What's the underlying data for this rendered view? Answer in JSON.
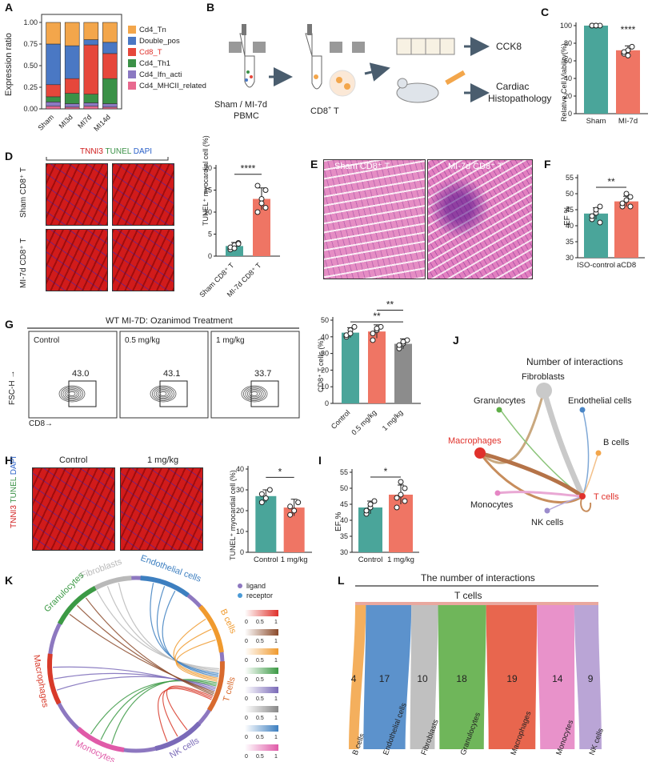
{
  "panels": {
    "A": "A",
    "B": "B",
    "C": "C",
    "D": "D",
    "E": "E",
    "F": "F",
    "G": "G",
    "H": "H",
    "I": "I",
    "J": "J",
    "K": "K",
    "L": "L"
  },
  "panelA": {
    "ylabel": "Expression ratio",
    "yticks": [
      "0.00",
      "0.25",
      "0.50",
      "0.75",
      "1.00"
    ],
    "legend": [
      {
        "label": "Cd4_Tn",
        "color": "#f3a64b"
      },
      {
        "label": "Double_pos",
        "color": "#4a78c4"
      },
      {
        "label": "Cd8_T",
        "color": "#e6473b",
        "highlight": true
      },
      {
        "label": "Cd4_Th1",
        "color": "#3b9147"
      },
      {
        "label": "Cd4_Ifn_acti",
        "color": "#8b79c2"
      },
      {
        "label": "Cd4_MHCII_related",
        "color": "#e86a8f"
      }
    ]
  },
  "panelB": {
    "source": "Sham / MI-7d",
    "source2": "PBMC",
    "cd8": "CD8",
    "cd8_sup": "+",
    "cd8_suffix": " T",
    "out1": "CCK8",
    "out2a": "Cardiac",
    "out2b": "Histopathology"
  },
  "panelC": {
    "ylabel": "Relative Cell Viability(%)",
    "yticks": [
      "0",
      "20",
      "40",
      "60",
      "80",
      "100"
    ],
    "groups": [
      "Sham",
      "MI-7d"
    ],
    "sig": "****"
  },
  "panelD": {
    "stain1": "TNNI3",
    "stain2": "TUNEL",
    "stain3": "DAPI",
    "row1": "Sham CD8⁺ T",
    "row2": "MI-7d CD8⁺ T",
    "ylabel": "TUNEL⁺ myocardial cell (%)",
    "yticks": [
      "0",
      "5",
      "10",
      "15",
      "20"
    ],
    "groups": [
      "Sham CD8⁺ T",
      "MI-7d CD8⁺ T"
    ],
    "sig": "****"
  },
  "panelE": {
    "title1": "Sham CD8⁺ T",
    "title2": "MI-7d CD8⁺ T"
  },
  "panelF": {
    "ylabel": "EF %",
    "yticks": [
      "30",
      "35",
      "40",
      "45",
      "50",
      "55"
    ],
    "groups": [
      "ISO-control",
      "aCD8"
    ],
    "sig": "**"
  },
  "panelG": {
    "header": "WT MI-7D: Ozanimod Treatment",
    "facs": [
      {
        "title": "Control",
        "value": "43.0"
      },
      {
        "title": "0.5 mg/kg",
        "value": "43.1"
      },
      {
        "title": "1 mg/kg",
        "value": "33.7"
      }
    ],
    "yaxis": "FSC-H →",
    "xaxis": "CD8→",
    "ylabel": "CD8⁺ T cells (%)",
    "yticks": [
      "0",
      "10",
      "20",
      "30",
      "40",
      "50"
    ],
    "groups": [
      "Control",
      "0.5 mg/kg",
      "1 mg/kg"
    ],
    "sig1": "**",
    "sig2": "**"
  },
  "panelH": {
    "title1": "Control",
    "title2": "1 mg/kg",
    "stain1": "TNNI3",
    "stain2": "TUNEL",
    "stain3": "DAPI",
    "ylabel": "TUNEL⁺ myocardial cell (%)",
    "yticks": [
      "0",
      "10",
      "20",
      "30",
      "40"
    ],
    "groups": [
      "Control",
      "1 mg/kg"
    ],
    "sig": "*"
  },
  "panelI": {
    "ylabel": "EF %",
    "yticks": [
      "30",
      "35",
      "40",
      "45",
      "50",
      "55"
    ],
    "groups": [
      "Control",
      "1 mg/kg"
    ],
    "sig": "*"
  },
  "panelJ": {
    "title": "Number of interactions",
    "nodes": [
      {
        "label": "Fibroblasts",
        "color": "#bbbbbb"
      },
      {
        "label": "Granulocytes",
        "color": "#5fae48"
      },
      {
        "label": "Endothelial cells",
        "color": "#4a86c6"
      },
      {
        "label": "Macrophages",
        "color": "#e0312b",
        "highlight": true
      },
      {
        "label": "B cells",
        "color": "#f3a64b"
      },
      {
        "label": "T cells",
        "color": "#e0312b",
        "highlight": true
      },
      {
        "label": "Monocytes",
        "color": "#e586c4"
      },
      {
        "label": "NK cells",
        "color": "#9c8ccc"
      }
    ]
  },
  "panelK": {
    "legend_ligand": "ligand",
    "legend_receptor": "receptor",
    "scale": {
      "a": "0",
      "b": "0.5",
      "c": "1"
    },
    "sectors": [
      {
        "label": "Fibroblasts",
        "color": "#b9b9b9"
      },
      {
        "label": "Endothelial cells",
        "color": "#3d7fc0"
      },
      {
        "label": "B cells",
        "color": "#f09a2e"
      },
      {
        "label": "T cells",
        "color": "#d86a2e"
      },
      {
        "label": "NK cells",
        "color": "#7a6ab8"
      },
      {
        "label": "Monocytes",
        "color": "#e05aa8"
      },
      {
        "label": "Macrophages",
        "color": "#d83a2a"
      },
      {
        "label": "Granulocytes",
        "color": "#3c9a45"
      }
    ],
    "gradients": [
      "#e0312b",
      "#8b4a2a",
      "#f09a2e",
      "#3c9a45",
      "#7a6ab8",
      "#888888",
      "#3d7fc0",
      "#e05aa8"
    ]
  },
  "panelL": {
    "title": "The number of interactions",
    "target": "T cells"
  },
  "chart_data": [
    {
      "panel": "A",
      "type": "bar",
      "stacked": true,
      "categories": [
        "Sham",
        "MI3d",
        "MI7d",
        "MI14d"
      ],
      "ylabel": "Expression ratio",
      "ylim": [
        0,
        1
      ],
      "series": [
        {
          "name": "Cd4_MHCII_related",
          "values": [
            0.03,
            0.02,
            0.03,
            0.02
          ]
        },
        {
          "name": "Cd4_Ifn_acti",
          "values": [
            0.05,
            0.04,
            0.04,
            0.04
          ]
        },
        {
          "name": "Cd4_Th1",
          "values": [
            0.06,
            0.12,
            0.1,
            0.29
          ]
        },
        {
          "name": "Cd8_T",
          "values": [
            0.14,
            0.17,
            0.57,
            0.29
          ]
        },
        {
          "name": "Double_pos",
          "values": [
            0.47,
            0.38,
            0.06,
            0.13
          ]
        },
        {
          "name": "Cd4_Tn",
          "values": [
            0.25,
            0.27,
            0.2,
            0.23
          ]
        }
      ]
    },
    {
      "panel": "C",
      "type": "bar",
      "categories": [
        "Sham",
        "MI-7d"
      ],
      "values": [
        100,
        72
      ],
      "ylabel": "Relative Cell Viability(%)",
      "ylim": [
        0,
        100
      ]
    },
    {
      "panel": "D",
      "type": "bar",
      "categories": [
        "Sham CD8⁺ T",
        "MI-7d CD8⁺ T"
      ],
      "values": [
        2.3,
        13.0
      ],
      "ylabel": "TUNEL⁺ myocardial cell (%)",
      "ylim": [
        0,
        20
      ]
    },
    {
      "panel": "F",
      "type": "bar",
      "categories": [
        "ISO-control",
        "aCD8"
      ],
      "values": [
        43.8,
        47.6
      ],
      "ylabel": "EF %",
      "ylim": [
        30,
        55
      ]
    },
    {
      "panel": "G",
      "type": "bar",
      "categories": [
        "Control",
        "0.5 mg/kg",
        "1 mg/kg"
      ],
      "values": [
        42.5,
        43.2,
        35.8
      ],
      "ylabel": "CD8⁺ T cells (%)",
      "ylim": [
        0,
        50
      ]
    },
    {
      "panel": "H",
      "type": "bar",
      "categories": [
        "Control",
        "1 mg/kg"
      ],
      "values": [
        27.0,
        21.5
      ],
      "ylabel": "TUNEL⁺ myocardial cell (%)",
      "ylim": [
        0,
        40
      ]
    },
    {
      "panel": "I",
      "type": "bar",
      "categories": [
        "Control",
        "1 mg/kg"
      ],
      "values": [
        44.0,
        48.0
      ],
      "ylabel": "EF %",
      "ylim": [
        30,
        55
      ]
    },
    {
      "panel": "L",
      "type": "bar",
      "categories": [
        "B cells",
        "Endothelial cells",
        "Fibroblasts",
        "Granulocytes",
        "Macrophages",
        "Monocytes",
        "NK cells"
      ],
      "values": [
        4,
        17,
        10,
        18,
        19,
        14,
        9
      ],
      "colors": [
        "#f3a64b",
        "#4a86c6",
        "#b9b9b9",
        "#5fae48",
        "#e6553b",
        "#e586c4",
        "#b39bd2"
      ]
    }
  ]
}
